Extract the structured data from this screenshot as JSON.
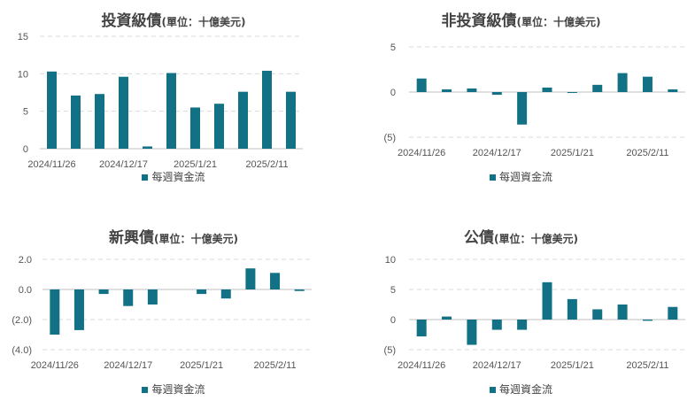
{
  "colors": {
    "bar": "#127184",
    "grid": "#d9d9d9",
    "axis": "#bfbfbf",
    "negative_label": "#c00000",
    "text": "#555555"
  },
  "chart_data": [
    {
      "type": "bar",
      "title": "投資級債",
      "unit_label": "(單位：十億美元)",
      "legend": "每週資金流",
      "ylim": [
        0,
        15
      ],
      "yticks": [
        {
          "value": 0,
          "label": "0"
        },
        {
          "value": 5,
          "label": "5"
        },
        {
          "value": 10,
          "label": "10"
        },
        {
          "value": 15,
          "label": "15"
        }
      ],
      "xtick_labels": [
        {
          "index": 0,
          "label": "2024/11/26"
        },
        {
          "index": 3,
          "label": "2024/12/17"
        },
        {
          "index": 6,
          "label": "2025/1/21"
        },
        {
          "index": 9,
          "label": "2025/2/11"
        }
      ],
      "values": [
        10.3,
        7.1,
        7.3,
        9.6,
        0.3,
        10.1,
        5.5,
        6.0,
        7.6,
        10.4,
        7.6
      ]
    },
    {
      "type": "bar",
      "title": "非投資級債",
      "unit_label": "(單位：十億美元)",
      "legend": "每週資金流",
      "ylim": [
        -5,
        5
      ],
      "yticks": [
        {
          "value": -5,
          "label": "(5)",
          "negative": true
        },
        {
          "value": 0,
          "label": "0"
        },
        {
          "value": 5,
          "label": "5"
        }
      ],
      "xtick_labels": [
        {
          "index": 0,
          "label": "2024/11/26"
        },
        {
          "index": 3,
          "label": "2024/12/17"
        },
        {
          "index": 6,
          "label": "2025/1/21"
        },
        {
          "index": 9,
          "label": "2025/2/11"
        }
      ],
      "values": [
        1.5,
        0.3,
        0.4,
        -0.3,
        -3.6,
        0.5,
        -0.1,
        0.8,
        2.1,
        1.7,
        0.3
      ]
    },
    {
      "type": "bar",
      "title": "新興債",
      "unit_label": "(單位：十億美元)",
      "legend": "每週資金流",
      "ylim": [
        -4,
        2
      ],
      "yticks": [
        {
          "value": -4,
          "label": "(4.0)",
          "negative": true
        },
        {
          "value": -2,
          "label": "(2.0)",
          "negative": true
        },
        {
          "value": 0,
          "label": "0.0"
        },
        {
          "value": 2,
          "label": "2.0"
        }
      ],
      "xtick_labels": [
        {
          "index": 0,
          "label": "2024/11/26"
        },
        {
          "index": 3,
          "label": "2024/12/17"
        },
        {
          "index": 6,
          "label": "2025/1/21"
        },
        {
          "index": 9,
          "label": "2025/2/11"
        }
      ],
      "values": [
        -3.0,
        -2.7,
        -0.3,
        -1.1,
        -1.0,
        0.0,
        -0.3,
        -0.6,
        1.4,
        1.1,
        -0.1
      ]
    },
    {
      "type": "bar",
      "title": "公債",
      "unit_label": "(單位：十億美元)",
      "legend": "每週資金流",
      "ylim": [
        -5,
        10
      ],
      "yticks": [
        {
          "value": -5,
          "label": "(5)",
          "negative": true
        },
        {
          "value": 0,
          "label": "0"
        },
        {
          "value": 5,
          "label": "5"
        },
        {
          "value": 10,
          "label": "10"
        }
      ],
      "xtick_labels": [
        {
          "index": 0,
          "label": "2024/11/26"
        },
        {
          "index": 3,
          "label": "2024/12/17"
        },
        {
          "index": 6,
          "label": "2025/1/21"
        },
        {
          "index": 9,
          "label": "2025/2/11"
        }
      ],
      "values": [
        -2.8,
        0.5,
        -4.2,
        -1.7,
        -1.7,
        6.2,
        3.4,
        1.7,
        2.5,
        -0.2,
        2.1
      ]
    }
  ]
}
